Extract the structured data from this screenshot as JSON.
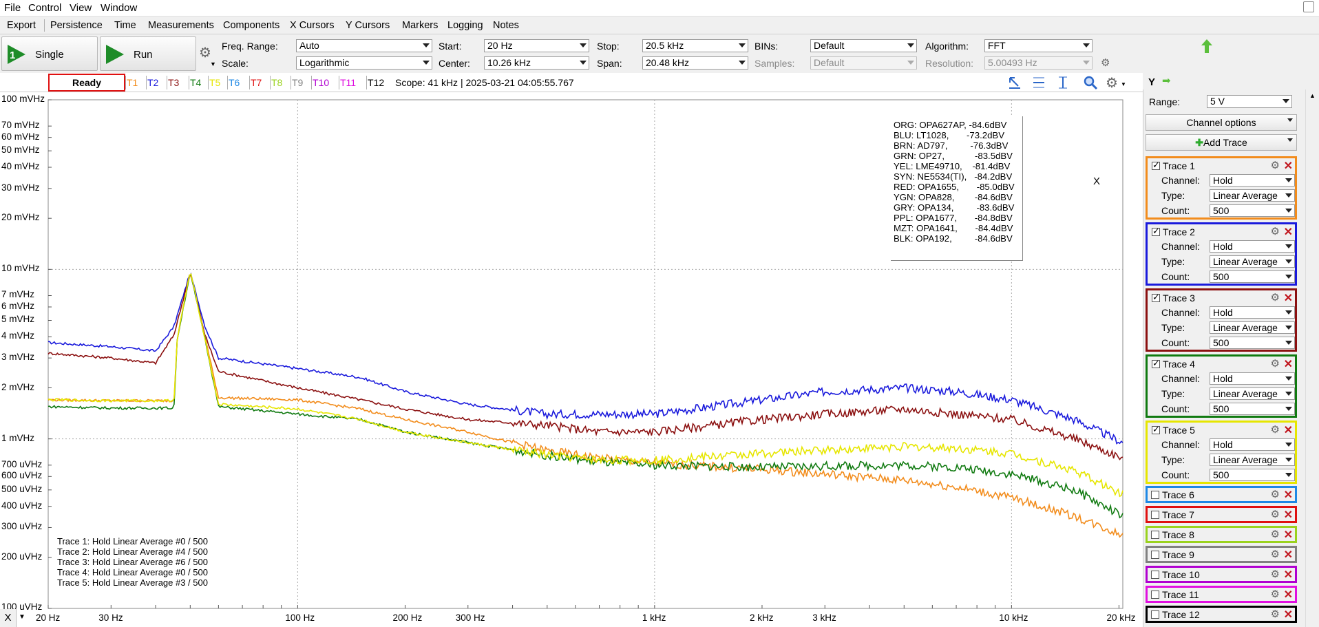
{
  "menu_top": [
    "File",
    "Control",
    "View",
    "Window"
  ],
  "menu_second": [
    "Export",
    "Persistence",
    "Time",
    "Measurements",
    "Components",
    "X Cursors",
    "Y Cursors",
    "Markers",
    "Logging",
    "Notes"
  ],
  "toolbar": {
    "single_label": "Single",
    "run_label": "Run",
    "freq_range_label": "Freq. Range:",
    "freq_range_value": "Auto",
    "scale_label": "Scale:",
    "scale_value": "Logarithmic",
    "start_label": "Start:",
    "start_value": "20 Hz",
    "center_label": "Center:",
    "center_value": "10.26 kHz",
    "stop_label": "Stop:",
    "stop_value": "20.5 kHz",
    "span_label": "Span:",
    "span_value": "20.48 kHz",
    "bins_label": "BINs:",
    "bins_value": "Default",
    "samples_label": "Samples:",
    "samples_value": "Default",
    "algorithm_label": "Algorithm:",
    "algorithm_value": "FFT",
    "resolution_label": "Resolution:",
    "resolution_value": "5.00493 Hz"
  },
  "status": {
    "state": "Ready",
    "traces": [
      {
        "label": "T1",
        "color": "#f28c1c"
      },
      {
        "label": "T2",
        "color": "#1a1adc"
      },
      {
        "label": "T3",
        "color": "#8b1010"
      },
      {
        "label": "T4",
        "color": "#107a10"
      },
      {
        "label": "T5",
        "color": "#e6e600"
      },
      {
        "label": "T6",
        "color": "#1e88e5"
      },
      {
        "label": "T7",
        "color": "#e01010"
      },
      {
        "label": "T8",
        "color": "#9ad21e"
      },
      {
        "label": "T9",
        "color": "#808080"
      },
      {
        "label": "T10",
        "color": "#b000d0"
      },
      {
        "label": "T11",
        "color": "#e010e0"
      },
      {
        "label": "T12",
        "color": "#000000"
      }
    ],
    "scope_info": "Scope: 41 kHz | 2025-03-21 04:05:55.767",
    "y_label": "Y"
  },
  "sidebar": {
    "range_label": "Range:",
    "range_value": "5 V",
    "channel_options": "Channel options",
    "add_trace": "Add Trace",
    "channel_label": "Channel:",
    "type_label": "Type:",
    "count_label": "Count:",
    "active_traces": [
      {
        "name": "Trace 1",
        "color": "#f28c1c",
        "channel": "Hold",
        "type": "Linear Average",
        "count": "500"
      },
      {
        "name": "Trace 2",
        "color": "#1a1adc",
        "channel": "Hold",
        "type": "Linear Average",
        "count": "500"
      },
      {
        "name": "Trace 3",
        "color": "#8b1010",
        "channel": "Hold",
        "type": "Linear Average",
        "count": "500"
      },
      {
        "name": "Trace 4",
        "color": "#107a10",
        "channel": "Hold",
        "type": "Linear Average",
        "count": "500"
      },
      {
        "name": "Trace 5",
        "color": "#e6e600",
        "channel": "Hold",
        "type": "Linear Average",
        "count": "500"
      }
    ],
    "inactive_traces": [
      {
        "name": "Trace 6",
        "color": "#1e88e5"
      },
      {
        "name": "Trace 7",
        "color": "#e01010"
      },
      {
        "name": "Trace 8",
        "color": "#9ad21e"
      },
      {
        "name": "Trace 9",
        "color": "#808080"
      },
      {
        "name": "Trace 10",
        "color": "#b000d0"
      },
      {
        "name": "Trace 11",
        "color": "#e010e0"
      },
      {
        "name": "Trace 12",
        "color": "#000000"
      }
    ]
  },
  "legend": [
    "ORG: OPA627AP, -84.6dBV",
    "BLU: LT1028,       -73.2dBV",
    "BRN: AD797,         -76.3dBV",
    "GRN: OP27,            -83.5dBV",
    "YEL: LME49710,    -81.4dBV",
    "SYN: NE5534(TI),   -84.2dBV",
    "RED: OPA1655,       -85.0dBV",
    "YGN: OPA828,        -84.6dBV",
    "GRY: OPA134,         -83.6dBV",
    "PPL: OPA1677,       -84.8dBV",
    "MZT: OPA1641,       -84.4dBV",
    "BLK: OPA192,         -84.6dBV"
  ],
  "legend_close": "X",
  "footer_lines": [
    "Trace 1: Hold Linear Average #0 / 500",
    "Trace 2: Hold Linear Average #4 / 500",
    "Trace 3: Hold Linear Average #6 / 500",
    "Trace 4: Hold Linear Average #0 / 500",
    "Trace 5: Hold Linear Average #3 / 500"
  ],
  "x_button": "X",
  "chart_data": {
    "type": "line",
    "xscale": "log",
    "yscale": "log",
    "xlim": [
      20,
      20500
    ],
    "ylim_v": [
      0.0001,
      0.1
    ],
    "y_ticks": [
      "100 mVHz",
      "70 mVHz",
      "60 mVHz",
      "50 mVHz",
      "40 mVHz",
      "30 mVHz",
      "20 mVHz",
      "10 mVHz",
      "7 mVHz",
      "6 mVHz",
      "5 mVHz",
      "4 mVHz",
      "3 mVHz",
      "2 mVHz",
      "1 mVHz",
      "700 uVHz",
      "600 uVHz",
      "500 uVHz",
      "400 uVHz",
      "300 uVHz",
      "200 uVHz",
      "100 uVHz"
    ],
    "y_tick_values": [
      0.1,
      0.07,
      0.06,
      0.05,
      0.04,
      0.03,
      0.02,
      0.01,
      0.007,
      0.006,
      0.005,
      0.004,
      0.003,
      0.002,
      0.001,
      0.0007,
      0.0006,
      0.0005,
      0.0004,
      0.0003,
      0.0002,
      0.0001
    ],
    "x_ticks": [
      "20 Hz",
      "30 Hz",
      "100 Hz",
      "200 Hz",
      "300 Hz",
      "1 kHz",
      "2 kHz",
      "3 kHz",
      "10 kHz",
      "20 kHz"
    ],
    "x_tick_values": [
      20,
      30,
      100,
      200,
      300,
      1000,
      2000,
      3000,
      10000,
      20000
    ],
    "series": [
      {
        "color": "#1a1adc",
        "points": [
          [
            20,
            0.0037
          ],
          [
            30,
            0.0035
          ],
          [
            40,
            0.0033
          ],
          [
            45,
            0.0046
          ],
          [
            50,
            0.0096
          ],
          [
            55,
            0.0046
          ],
          [
            60,
            0.003
          ],
          [
            100,
            0.0026
          ],
          [
            150,
            0.0023
          ],
          [
            200,
            0.0019
          ],
          [
            300,
            0.0016
          ],
          [
            500,
            0.0014
          ],
          [
            700,
            0.0014
          ],
          [
            1000,
            0.0014
          ],
          [
            2000,
            0.0017
          ],
          [
            3000,
            0.0019
          ],
          [
            5000,
            0.002
          ],
          [
            7000,
            0.0019
          ],
          [
            10000,
            0.0017
          ],
          [
            15000,
            0.0013
          ],
          [
            20500,
            0.00095
          ]
        ]
      },
      {
        "color": "#8b1010",
        "points": [
          [
            20,
            0.0032
          ],
          [
            30,
            0.003
          ],
          [
            40,
            0.0028
          ],
          [
            45,
            0.0041
          ],
          [
            50,
            0.0096
          ],
          [
            55,
            0.0041
          ],
          [
            60,
            0.0025
          ],
          [
            100,
            0.002
          ],
          [
            150,
            0.0017
          ],
          [
            200,
            0.0015
          ],
          [
            300,
            0.0013
          ],
          [
            500,
            0.0012
          ],
          [
            700,
            0.0011
          ],
          [
            1000,
            0.0011
          ],
          [
            2000,
            0.0013
          ],
          [
            3000,
            0.0014
          ],
          [
            5000,
            0.0015
          ],
          [
            7000,
            0.0014
          ],
          [
            10000,
            0.0013
          ],
          [
            15000,
            0.001
          ],
          [
            20500,
            0.00077
          ]
        ]
      },
      {
        "color": "#f28c1c",
        "points": [
          [
            20,
            0.0017
          ],
          [
            30,
            0.00168
          ],
          [
            45,
            0.00168
          ],
          [
            46,
            0.004
          ],
          [
            50,
            0.0096
          ],
          [
            55,
            0.004
          ],
          [
            60,
            0.00175
          ],
          [
            100,
            0.0017
          ],
          [
            150,
            0.0015
          ],
          [
            200,
            0.0013
          ],
          [
            300,
            0.0011
          ],
          [
            500,
            0.00085
          ],
          [
            700,
            0.00077
          ],
          [
            1000,
            0.00072
          ],
          [
            2000,
            0.00066
          ],
          [
            3000,
            0.00062
          ],
          [
            5000,
            0.00057
          ],
          [
            7000,
            0.00052
          ],
          [
            10000,
            0.00045
          ],
          [
            15000,
            0.00035
          ],
          [
            20500,
            0.00027
          ]
        ]
      },
      {
        "color": "#107a10",
        "points": [
          [
            20,
            0.00155
          ],
          [
            30,
            0.00152
          ],
          [
            45,
            0.00152
          ],
          [
            46,
            0.0039
          ],
          [
            50,
            0.0096
          ],
          [
            55,
            0.0039
          ],
          [
            60,
            0.00155
          ],
          [
            100,
            0.0014
          ],
          [
            150,
            0.0013
          ],
          [
            200,
            0.0011
          ],
          [
            300,
            0.00095
          ],
          [
            500,
            0.0008
          ],
          [
            700,
            0.00073
          ],
          [
            1000,
            0.0007
          ],
          [
            2000,
            0.00068
          ],
          [
            3000,
            0.00069
          ],
          [
            5000,
            0.0007
          ],
          [
            7000,
            0.00068
          ],
          [
            10000,
            0.00062
          ],
          [
            15000,
            0.0005
          ],
          [
            20500,
            0.00035
          ]
        ]
      },
      {
        "color": "#e6e600",
        "points": [
          [
            20,
            0.0017
          ],
          [
            30,
            0.00168
          ],
          [
            45,
            0.00168
          ],
          [
            46,
            0.0039
          ],
          [
            50,
            0.0098
          ],
          [
            55,
            0.0039
          ],
          [
            60,
            0.0016
          ],
          [
            100,
            0.0015
          ],
          [
            150,
            0.0013
          ],
          [
            200,
            0.0011
          ],
          [
            300,
            0.00095
          ],
          [
            500,
            0.0008
          ],
          [
            700,
            0.00075
          ],
          [
            1000,
            0.00075
          ],
          [
            2000,
            0.00082
          ],
          [
            3000,
            0.00086
          ],
          [
            5000,
            0.0009
          ],
          [
            7000,
            0.00088
          ],
          [
            10000,
            0.00082
          ],
          [
            15000,
            0.00065
          ],
          [
            20500,
            0.00047
          ]
        ]
      }
    ]
  }
}
